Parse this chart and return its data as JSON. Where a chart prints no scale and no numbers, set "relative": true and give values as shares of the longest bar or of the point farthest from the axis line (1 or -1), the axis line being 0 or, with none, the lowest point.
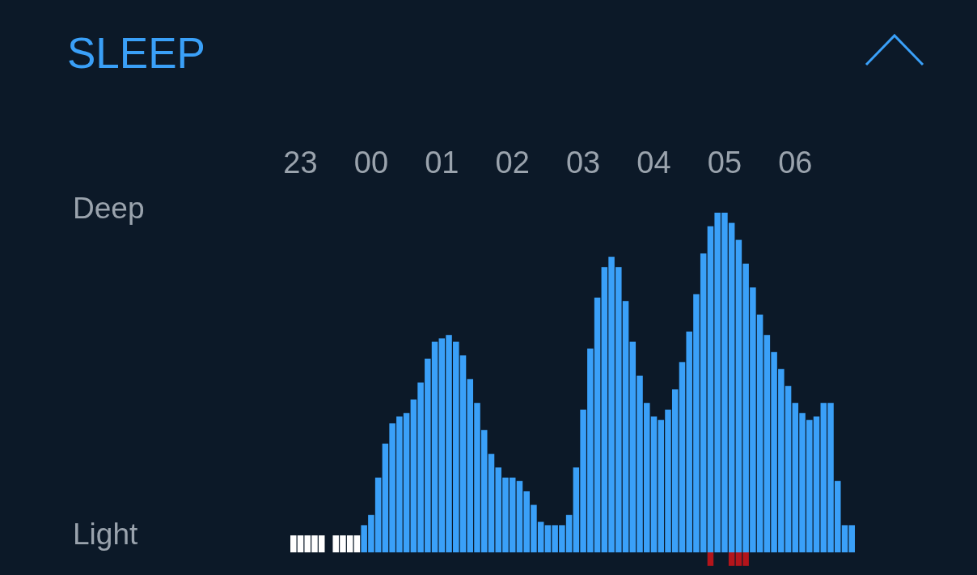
{
  "chart_data": {
    "type": "bar",
    "title": "SLEEP",
    "relative": true,
    "categories": [
      null,
      "23",
      null,
      null,
      null,
      null,
      null,
      null,
      null,
      null,
      null,
      "00",
      null,
      null,
      null,
      null,
      null,
      null,
      null,
      null,
      null,
      "01",
      null,
      null,
      null,
      null,
      null,
      null,
      null,
      null,
      null,
      "02",
      null,
      null,
      null,
      null,
      null,
      null,
      null,
      null,
      null,
      "03",
      null,
      null,
      null,
      null,
      null,
      null,
      null,
      null,
      null,
      "04",
      null,
      null,
      null,
      null,
      null,
      null,
      null,
      null,
      null,
      "05",
      null,
      null,
      null,
      null,
      null,
      null,
      null,
      null,
      null,
      "06",
      null,
      null,
      null,
      null,
      null,
      null,
      null,
      null
    ],
    "annotations": [
      "Deep",
      "Light"
    ],
    "series": [
      {
        "values": [
          0.05,
          0.05,
          0.05,
          0.05,
          0.05,
          null,
          0.05,
          0.05,
          0.05,
          0.05,
          0.08,
          0.11,
          0.22,
          0.32,
          0.38,
          0.4,
          0.41,
          0.45,
          0.5,
          0.57,
          0.62,
          0.63,
          0.64,
          0.62,
          0.58,
          0.51,
          0.44,
          0.36,
          0.29,
          0.25,
          0.22,
          0.22,
          0.21,
          0.18,
          0.14,
          0.09,
          0.08,
          0.08,
          0.08,
          0.11,
          0.25,
          0.42,
          0.6,
          0.75,
          0.84,
          0.87,
          0.84,
          0.74,
          0.62,
          0.52,
          0.44,
          0.4,
          0.39,
          0.42,
          0.48,
          0.56,
          0.65,
          0.76,
          0.88,
          0.96,
          1,
          1,
          0.97,
          0.92,
          0.85,
          0.78,
          0.7,
          0.64,
          0.59,
          0.54,
          0.49,
          0.44,
          0.41,
          0.39,
          0.4,
          0.44,
          0.44,
          0.21,
          0.08,
          0.08
        ],
        "colors": [
          "#ffffff",
          "#ffffff",
          "#ffffff",
          "#ffffff",
          "#ffffff",
          null,
          "#ffffff",
          "#ffffff",
          "#ffffff",
          "#ffffff",
          "#3aa0f8",
          "#3aa0f8",
          "#3aa0f8",
          "#3aa0f8",
          "#3aa0f8",
          "#3aa0f8",
          "#3aa0f8",
          "#3aa0f8",
          "#3aa0f8",
          "#3aa0f8",
          "#3aa0f8",
          "#3aa0f8",
          "#3aa0f8",
          "#3aa0f8",
          "#3aa0f8",
          "#3aa0f8",
          "#3aa0f8",
          "#3aa0f8",
          "#3aa0f8",
          "#3aa0f8",
          "#3aa0f8",
          "#3aa0f8",
          "#3aa0f8",
          "#3aa0f8",
          "#3aa0f8",
          "#3aa0f8",
          "#3aa0f8",
          "#3aa0f8",
          "#3aa0f8",
          "#3aa0f8",
          "#3aa0f8",
          "#3aa0f8",
          "#3aa0f8",
          "#3aa0f8",
          "#3aa0f8",
          "#3aa0f8",
          "#3aa0f8",
          "#3aa0f8",
          "#3aa0f8",
          "#3aa0f8",
          "#3aa0f8",
          "#3aa0f8",
          "#3aa0f8",
          "#3aa0f8",
          "#3aa0f8",
          "#3aa0f8",
          "#3aa0f8",
          "#3aa0f8",
          "#3aa0f8",
          "#3aa0f8",
          "#3aa0f8",
          "#3aa0f8",
          "#3aa0f8",
          "#3aa0f8",
          "#3aa0f8",
          "#3aa0f8",
          "#3aa0f8",
          "#3aa0f8",
          "#3aa0f8",
          "#3aa0f8",
          "#3aa0f8",
          "#3aa0f8",
          "#3aa0f8",
          "#3aa0f8",
          "#3aa0f8",
          "#3aa0f8",
          "#3aa0f8",
          "#3aa0f8",
          "#3aa0f8",
          "#3aa0f8"
        ]
      },
      {
        "color": "#b3151b",
        "values": [
          null,
          null,
          null,
          null,
          null,
          null,
          null,
          null,
          null,
          null,
          null,
          null,
          null,
          null,
          null,
          null,
          null,
          null,
          null,
          null,
          null,
          null,
          null,
          null,
          null,
          null,
          null,
          null,
          null,
          null,
          null,
          null,
          null,
          null,
          null,
          null,
          null,
          null,
          null,
          null,
          null,
          null,
          null,
          null,
          null,
          null,
          null,
          null,
          null,
          null,
          null,
          null,
          null,
          null,
          null,
          null,
          null,
          null,
          null,
          -0.04,
          null,
          null,
          -0.04,
          -0.04,
          -0.04,
          null,
          null,
          null,
          null,
          null,
          null,
          null,
          null,
          null,
          null,
          null,
          null,
          null,
          null,
          null
        ]
      }
    ]
  }
}
